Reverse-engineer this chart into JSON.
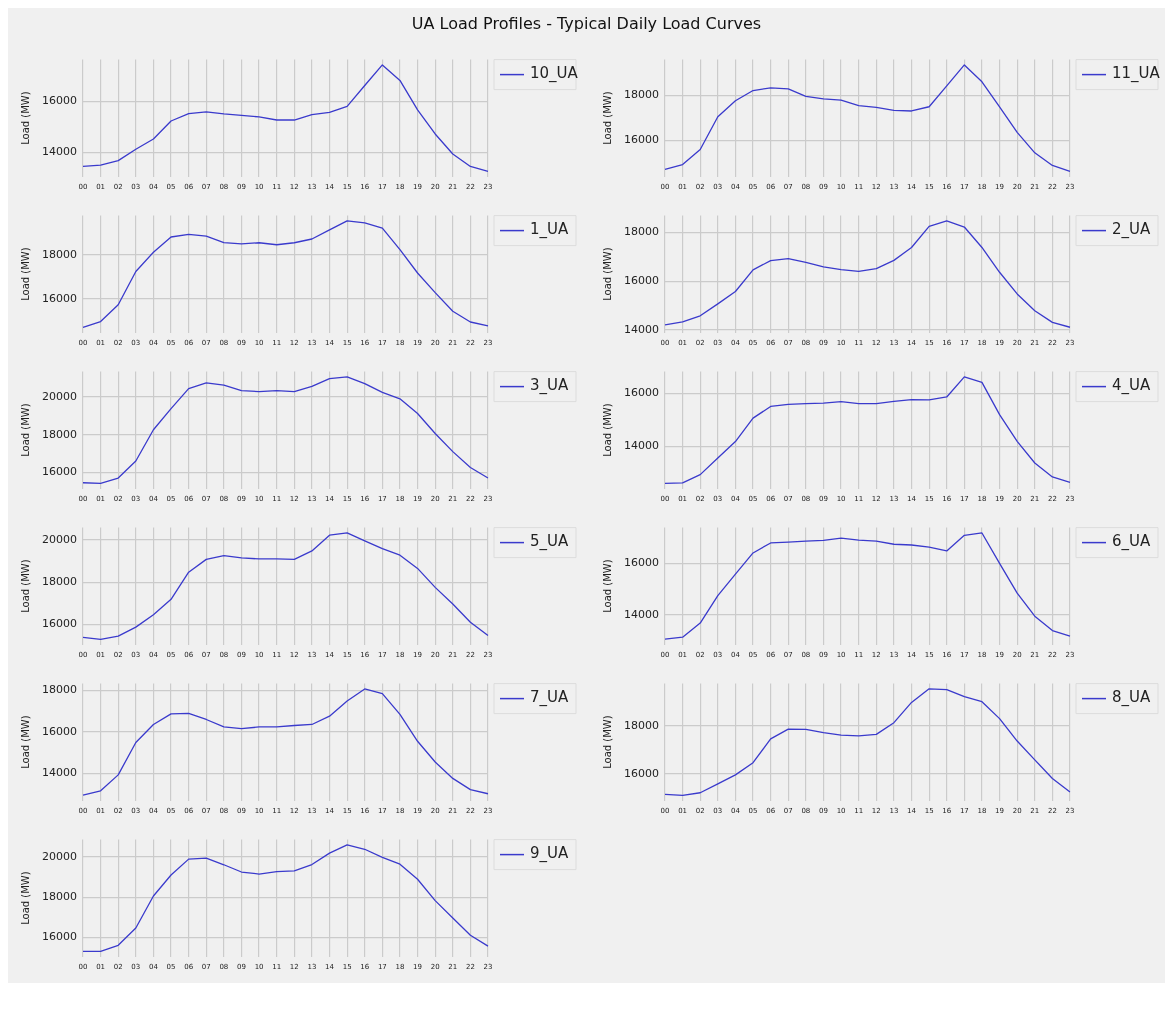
{
  "chart_data": [
    {
      "type": "line",
      "title": "UA Load Profiles - Typical Daily Load Curves",
      "ylabel": "Load (MW)",
      "categories": [
        "00",
        "01",
        "02",
        "03",
        "04",
        "05",
        "06",
        "07",
        "08",
        "09",
        "10",
        "11",
        "12",
        "13",
        "14",
        "15",
        "16",
        "17",
        "18",
        "19",
        "20",
        "21",
        "22",
        "23"
      ],
      "series": [
        {
          "name": "10_UA",
          "color": "#3a3acc",
          "values": [
            13440,
            13490,
            13670,
            14120,
            14520,
            15230,
            15520,
            15590,
            15510,
            15450,
            15390,
            15270,
            15270,
            15480,
            15570,
            15810,
            16630,
            17440,
            16830,
            15670,
            14720,
            13930,
            13440,
            13250
          ]
        }
      ],
      "ylim": [
        13040,
        17650
      ],
      "yticks": [
        14000,
        16000
      ],
      "grid": true,
      "legend": "top right"
    },
    {
      "type": "line",
      "ylabel": "Load (MW)",
      "categories": [
        "00",
        "01",
        "02",
        "03",
        "04",
        "05",
        "06",
        "07",
        "08",
        "09",
        "10",
        "11",
        "12",
        "13",
        "14",
        "15",
        "16",
        "17",
        "18",
        "19",
        "20",
        "21",
        "22",
        "23"
      ],
      "series": [
        {
          "name": "11_UA",
          "color": "#3a3acc",
          "values": [
            14690,
            14900,
            15580,
            17050,
            17770,
            18230,
            18350,
            18300,
            17970,
            17850,
            17800,
            17550,
            17470,
            17340,
            17310,
            17500,
            18440,
            19380,
            18620,
            17500,
            16350,
            15430,
            14860,
            14600
          ]
        }
      ],
      "ylim": [
        14360,
        19620
      ],
      "yticks": [
        16000,
        18000
      ],
      "grid": true,
      "legend": "top right"
    },
    {
      "type": "line",
      "ylabel": "Load (MW)",
      "categories": [
        "00",
        "01",
        "02",
        "03",
        "04",
        "05",
        "06",
        "07",
        "08",
        "09",
        "10",
        "11",
        "12",
        "13",
        "14",
        "15",
        "16",
        "17",
        "18",
        "19",
        "20",
        "21",
        "22",
        "23"
      ],
      "series": [
        {
          "name": "1_UA",
          "color": "#3a3acc",
          "values": [
            14720,
            14980,
            15740,
            17250,
            18120,
            18810,
            18930,
            18850,
            18560,
            18500,
            18550,
            18460,
            18550,
            18720,
            19130,
            19540,
            19450,
            19210,
            18240,
            17180,
            16290,
            15450,
            14960,
            14780
          ]
        }
      ],
      "ylim": [
        14480,
        19780
      ],
      "yticks": [
        16000,
        18000
      ],
      "grid": true,
      "legend": "top right"
    },
    {
      "type": "line",
      "ylabel": "Load (MW)",
      "categories": [
        "00",
        "01",
        "02",
        "03",
        "04",
        "05",
        "06",
        "07",
        "08",
        "09",
        "10",
        "11",
        "12",
        "13",
        "14",
        "15",
        "16",
        "17",
        "18",
        "19",
        "20",
        "21",
        "22",
        "23"
      ],
      "series": [
        {
          "name": "2_UA",
          "color": "#3a3acc",
          "values": [
            14210,
            14330,
            14580,
            15070,
            15580,
            16470,
            16850,
            16930,
            16780,
            16590,
            16480,
            16410,
            16520,
            16860,
            17390,
            18260,
            18480,
            18230,
            17390,
            16370,
            15480,
            14790,
            14310,
            14110
          ]
        }
      ],
      "ylim": [
        13890,
        18700
      ],
      "yticks": [
        14000,
        16000,
        18000
      ],
      "grid": true,
      "legend": "top right"
    },
    {
      "type": "line",
      "ylabel": "Load (MW)",
      "categories": [
        "00",
        "01",
        "02",
        "03",
        "04",
        "05",
        "06",
        "07",
        "08",
        "09",
        "10",
        "11",
        "12",
        "13",
        "14",
        "15",
        "16",
        "17",
        "18",
        "19",
        "20",
        "21",
        "22",
        "23"
      ],
      "series": [
        {
          "name": "3_UA",
          "color": "#3a3acc",
          "values": [
            15460,
            15430,
            15710,
            16610,
            18270,
            19390,
            20450,
            20750,
            20630,
            20340,
            20290,
            20340,
            20290,
            20570,
            20980,
            21070,
            20710,
            20250,
            19910,
            19130,
            18070,
            17110,
            16270,
            15710
          ]
        }
      ],
      "ylim": [
        15150,
        21350
      ],
      "yticks": [
        16000,
        18000,
        20000
      ],
      "grid": true,
      "legend": "top right"
    },
    {
      "type": "line",
      "ylabel": "Load (MW)",
      "categories": [
        "00",
        "01",
        "02",
        "03",
        "04",
        "05",
        "06",
        "07",
        "08",
        "09",
        "10",
        "11",
        "12",
        "13",
        "14",
        "15",
        "16",
        "17",
        "18",
        "19",
        "20",
        "21",
        "22",
        "23"
      ],
      "series": [
        {
          "name": "4_UA",
          "color": "#3a3acc",
          "values": [
            12600,
            12620,
            12930,
            13560,
            14180,
            15070,
            15510,
            15590,
            15620,
            15640,
            15690,
            15620,
            15620,
            15700,
            15770,
            15760,
            15870,
            16630,
            16420,
            15200,
            14190,
            13370,
            12840,
            12640
          ]
        }
      ],
      "ylim": [
        12400,
        16830
      ],
      "yticks": [
        14000,
        16000
      ],
      "grid": true,
      "legend": "top right"
    },
    {
      "type": "line",
      "ylabel": "Load (MW)",
      "categories": [
        "00",
        "01",
        "02",
        "03",
        "04",
        "05",
        "06",
        "07",
        "08",
        "09",
        "10",
        "11",
        "12",
        "13",
        "14",
        "15",
        "16",
        "17",
        "18",
        "19",
        "20",
        "21",
        "22",
        "23"
      ],
      "series": [
        {
          "name": "5_UA",
          "color": "#3a3acc",
          "values": [
            15370,
            15280,
            15430,
            15860,
            16450,
            17180,
            18470,
            19080,
            19260,
            19150,
            19100,
            19100,
            19080,
            19480,
            20230,
            20340,
            19960,
            19590,
            19280,
            18650,
            17750,
            16960,
            16090,
            15460
          ]
        }
      ],
      "ylim": [
        15030,
        20590
      ],
      "yticks": [
        16000,
        18000,
        20000
      ],
      "grid": true,
      "legend": "top right"
    },
    {
      "type": "line",
      "ylabel": "Load (MW)",
      "categories": [
        "00",
        "01",
        "02",
        "03",
        "04",
        "05",
        "06",
        "07",
        "08",
        "09",
        "10",
        "11",
        "12",
        "13",
        "14",
        "15",
        "16",
        "17",
        "18",
        "19",
        "20",
        "21",
        "22",
        "23"
      ],
      "series": [
        {
          "name": "6_UA",
          "color": "#3a3acc",
          "values": [
            13040,
            13120,
            13670,
            14740,
            15580,
            16410,
            16800,
            16830,
            16870,
            16900,
            16990,
            16910,
            16870,
            16750,
            16720,
            16640,
            16490,
            17100,
            17190,
            16000,
            14840,
            13940,
            13380,
            13160
          ]
        }
      ],
      "ylim": [
        12830,
        17400
      ],
      "yticks": [
        14000,
        16000
      ],
      "grid": true,
      "legend": "top right"
    },
    {
      "type": "line",
      "ylabel": "Load (MW)",
      "categories": [
        "00",
        "01",
        "02",
        "03",
        "04",
        "05",
        "06",
        "07",
        "08",
        "09",
        "10",
        "11",
        "12",
        "13",
        "14",
        "15",
        "16",
        "17",
        "18",
        "19",
        "20",
        "21",
        "22",
        "23"
      ],
      "series": [
        {
          "name": "7_UA",
          "color": "#3a3acc",
          "values": [
            12950,
            13160,
            13930,
            15490,
            16360,
            16870,
            16890,
            16600,
            16240,
            16160,
            16240,
            16240,
            16310,
            16360,
            16760,
            17490,
            18070,
            17850,
            16850,
            15550,
            14550,
            13760,
            13220,
            13020
          ]
        }
      ],
      "ylim": [
        12690,
        18330
      ],
      "yticks": [
        14000,
        16000,
        18000
      ],
      "grid": true,
      "legend": "top right"
    },
    {
      "type": "line",
      "ylabel": "Load (MW)",
      "categories": [
        "00",
        "01",
        "02",
        "03",
        "04",
        "05",
        "06",
        "07",
        "08",
        "09",
        "10",
        "11",
        "12",
        "13",
        "14",
        "15",
        "16",
        "17",
        "18",
        "19",
        "20",
        "21",
        "22",
        "23"
      ],
      "series": [
        {
          "name": "8_UA",
          "color": "#3a3acc",
          "values": [
            15130,
            15090,
            15200,
            15570,
            15950,
            16460,
            17460,
            17870,
            17860,
            17720,
            17620,
            17590,
            17650,
            18140,
            18990,
            19560,
            19530,
            19230,
            19020,
            18310,
            17370,
            16580,
            15800,
            15230
          ]
        }
      ],
      "ylim": [
        14870,
        19780
      ],
      "yticks": [
        16000,
        18000
      ],
      "grid": true,
      "legend": "top right"
    },
    {
      "type": "line",
      "ylabel": "Load (MW)",
      "categories": [
        "00",
        "01",
        "02",
        "03",
        "04",
        "05",
        "06",
        "07",
        "08",
        "09",
        "10",
        "11",
        "12",
        "13",
        "14",
        "15",
        "16",
        "17",
        "18",
        "19",
        "20",
        "21",
        "22",
        "23"
      ],
      "series": [
        {
          "name": "9_UA",
          "color": "#3a3acc",
          "values": [
            15310,
            15310,
            15610,
            16470,
            18060,
            19100,
            19890,
            19940,
            19610,
            19250,
            19150,
            19270,
            19310,
            19620,
            20190,
            20600,
            20380,
            19980,
            19640,
            18890,
            17830,
            16970,
            16110,
            15570
          ]
        }
      ],
      "ylim": [
        15050,
        20860
      ],
      "yticks": [
        16000,
        18000,
        20000
      ],
      "grid": true,
      "legend": "top right"
    }
  ]
}
